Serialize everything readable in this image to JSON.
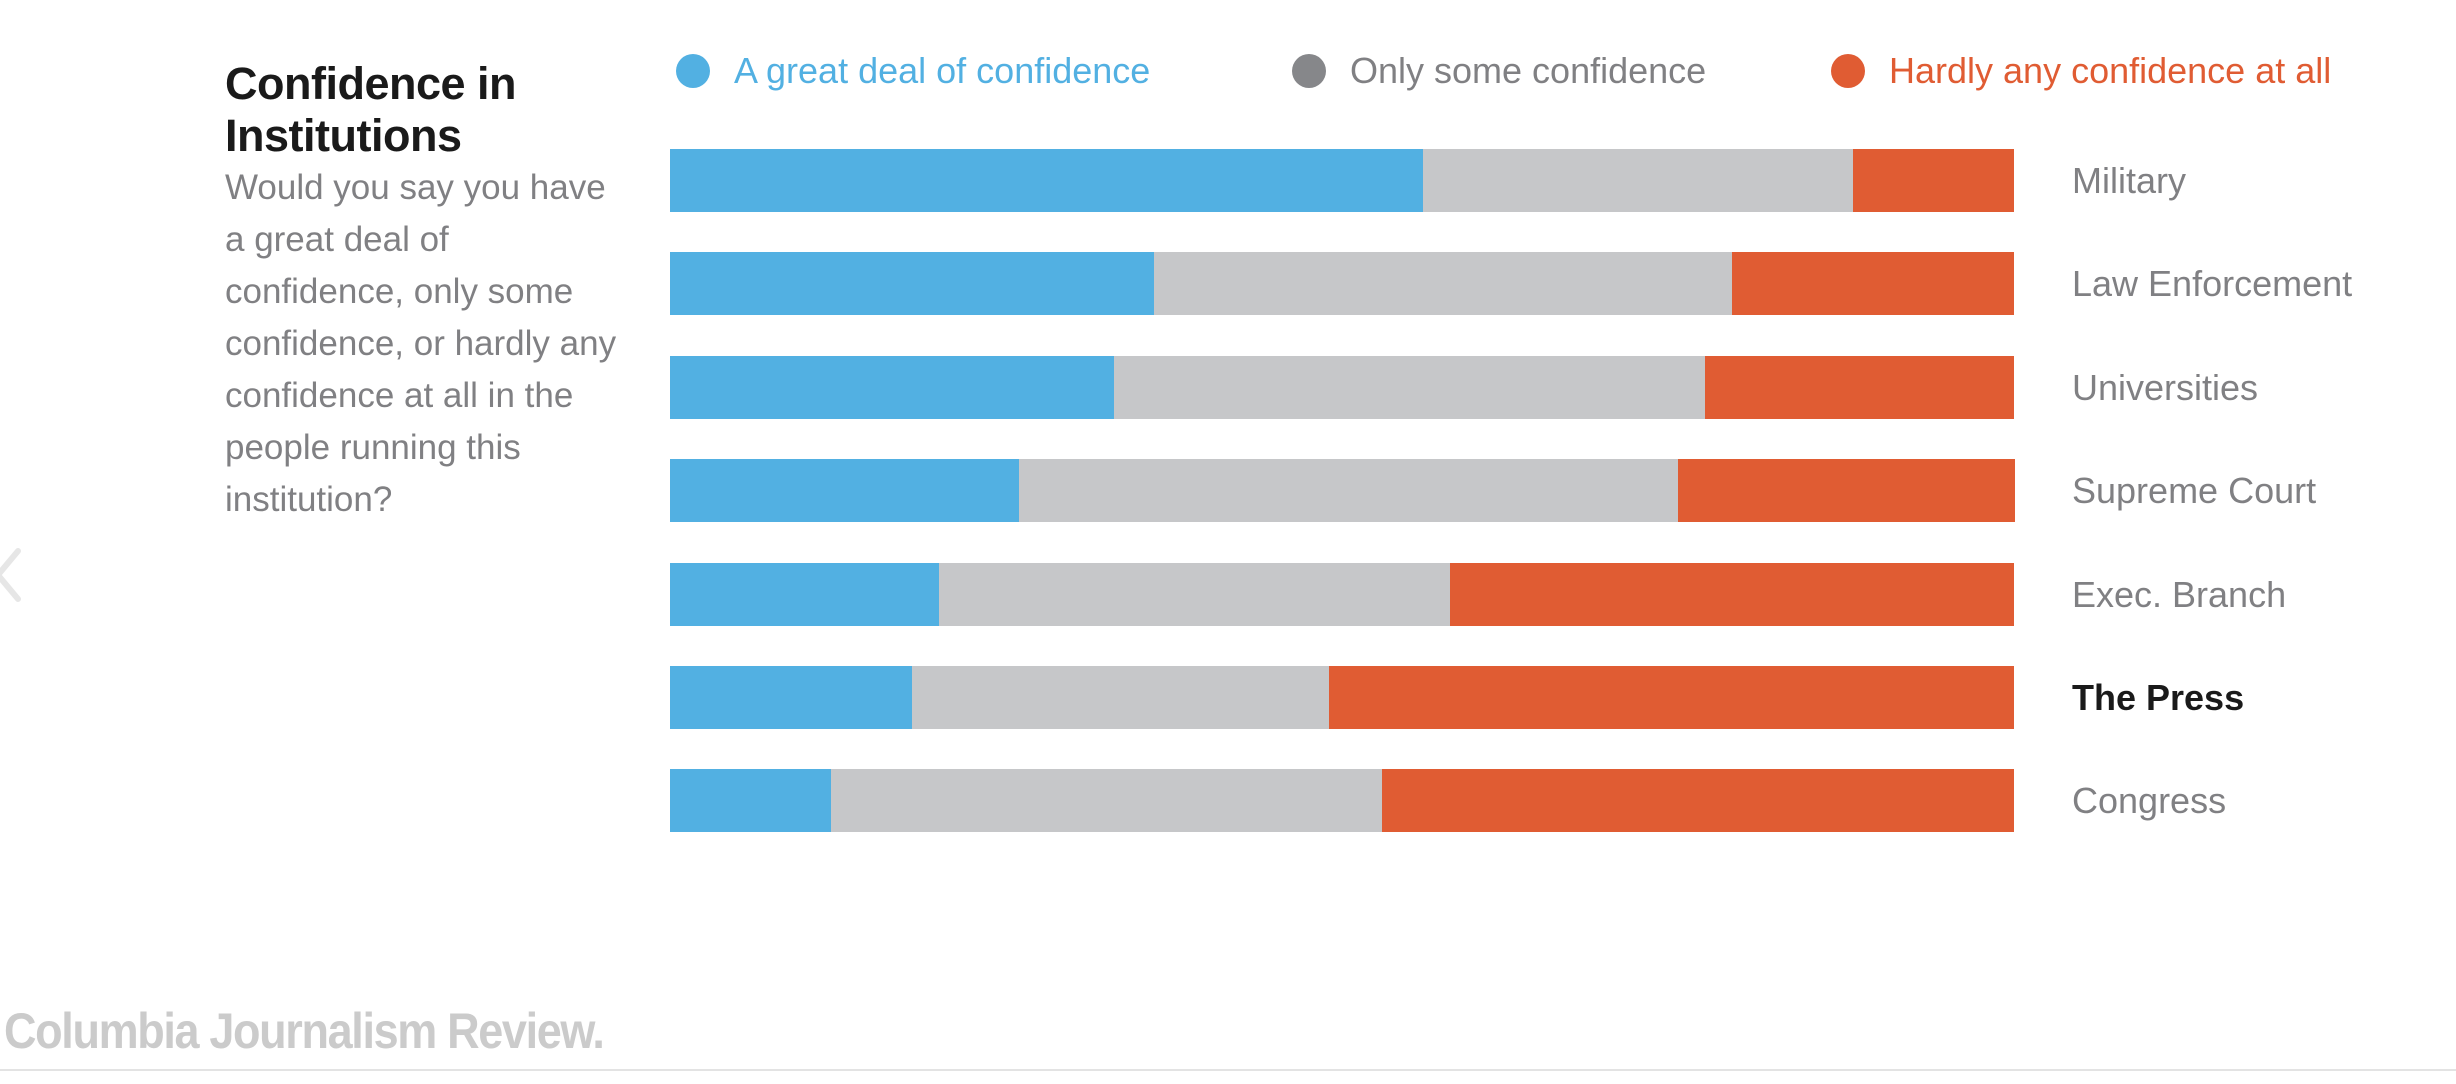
{
  "header": {
    "title": "Confidence in Institutions",
    "description": "Would you say you have a great deal of confidence, only some confidence, or hardly any confidence at all in the people running this institution?"
  },
  "footer": {
    "brand": "Columbia Journalism Review."
  },
  "chart_data": {
    "type": "bar",
    "orientation": "horizontal",
    "stacked": true,
    "normalized_percent": true,
    "title": "Confidence in Institutions",
    "subtitle": "Would you say you have a great deal of confidence, only some confidence, or hardly any confidence at all in the people running this institution?",
    "xlim": [
      0,
      100
    ],
    "grid": false,
    "legend_position": "top",
    "categories": [
      "Military",
      "Law Enforcement",
      "Universities",
      "Supreme Court",
      "Exec. Branch",
      "The Press",
      "Congress"
    ],
    "highlighted_category": "The Press",
    "series": [
      {
        "name": "A great deal of confidence",
        "color": "#52b0e2",
        "values": [
          56,
          36,
          33,
          26,
          20,
          18,
          12
        ]
      },
      {
        "name": "Only some confidence",
        "color": "#c6c7c9",
        "legend_color": "#86878a",
        "values": [
          32,
          43,
          44,
          49,
          38,
          31,
          41
        ]
      },
      {
        "name": "Hardly any confidence at all",
        "color": "#e05c33",
        "values": [
          12,
          21,
          23,
          25,
          42,
          51,
          47
        ]
      }
    ]
  }
}
